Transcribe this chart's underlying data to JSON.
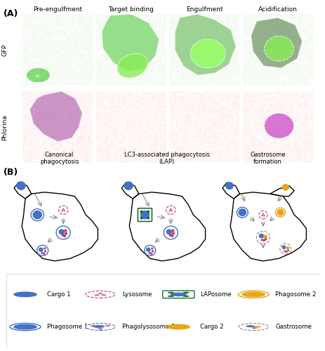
{
  "panel_A_label": "(A)",
  "panel_B_label": "(B)",
  "col_labels": [
    "Pre-engulfment",
    "Target binding",
    "Engulfment",
    "Acidification"
  ],
  "row_labels": [
    "GFP",
    "Phlorina"
  ],
  "diagram_titles": [
    "Canonical\nphagocytosis",
    "LC3-associated phagocytosis\n(LAP)",
    "Gastrosome\nformation"
  ],
  "legend_items": [
    {
      "label": "Cargo 1",
      "col": 0,
      "row": 0
    },
    {
      "label": "Lysosome",
      "col": 1,
      "row": 0
    },
    {
      "label": "LAPosome",
      "col": 2,
      "row": 0
    },
    {
      "label": "Phagosome 2",
      "col": 3,
      "row": 0
    },
    {
      "label": "Phagosome 1",
      "col": 0,
      "row": 1
    },
    {
      "label": "Phagolysosome 1",
      "col": 1,
      "row": 1
    },
    {
      "label": "Cargo 2",
      "col": 2,
      "row": 1
    },
    {
      "label": "Gastrosome",
      "col": 3,
      "row": 1
    }
  ],
  "colors": {
    "blue": "#4472C4",
    "blue_dark": "#2E5FA3",
    "blue_light": "#6FA8DC",
    "magenta": "#C0427A",
    "pink": "#E06090",
    "green_dark": "#1E6B2E",
    "yellow": "#E6A817",
    "yellow_light": "#F4C430",
    "white": "#FFFFFF",
    "black": "#000000",
    "gray": "#888888",
    "bg_white": "#FFFFFF",
    "gfp_bg": "#1a2a1a",
    "gfp_green": "#4aaa30",
    "phlorina_bg": "#2a1a2a",
    "phlorina_purple": "#cc55cc"
  }
}
